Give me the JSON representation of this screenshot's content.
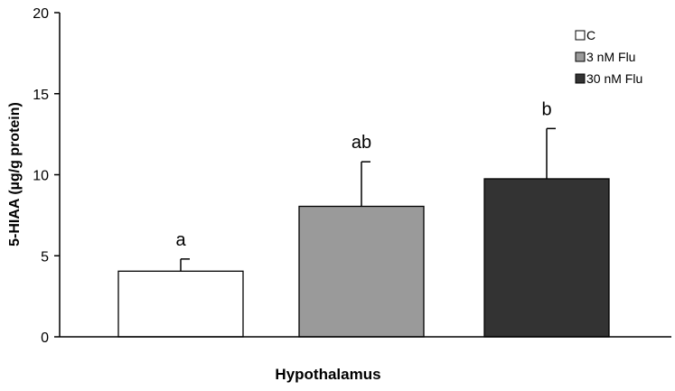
{
  "chart_data": {
    "type": "bar",
    "xlabel": "Hypothalamus",
    "ylabel": "5-HIAA (µg/g protein)",
    "ylim": [
      0,
      20
    ],
    "yticks": [
      0,
      5,
      10,
      15,
      20
    ],
    "grid": false,
    "legend_position": "top-right",
    "series": [
      {
        "name": "C",
        "value": 4.05,
        "error": 0.75,
        "significance": "a",
        "color": "#ffffff"
      },
      {
        "name": "3 nM Flu",
        "value": 8.05,
        "error": 2.75,
        "significance": "ab",
        "color": "#9a9a9a"
      },
      {
        "name": "30 nM Flu",
        "value": 9.75,
        "error": 3.1,
        "significance": "b",
        "color": "#333333"
      }
    ]
  }
}
